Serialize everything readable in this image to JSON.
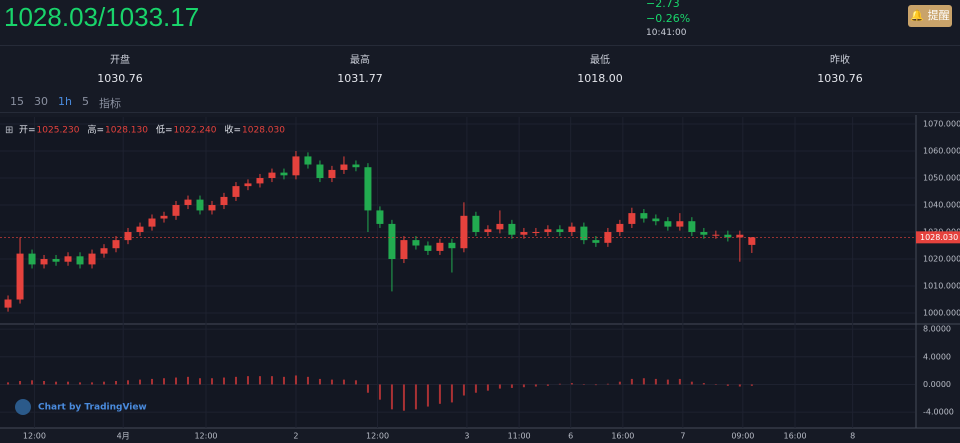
{
  "header": {
    "price": "1028.03/1033.17",
    "change": "−2.73",
    "change_pct": "−0.26%",
    "time": "10:41:00",
    "button": "提醒"
  },
  "stats": [
    {
      "label": "开盘",
      "value": "1030.76"
    },
    {
      "label": "最高",
      "value": "1031.77"
    },
    {
      "label": "最低",
      "value": "1018.00"
    },
    {
      "label": "昨收",
      "value": "1030.76"
    }
  ],
  "toolbar": {
    "intervals": [
      "15",
      "30",
      "1h",
      "5"
    ],
    "indicators": "指标"
  },
  "watermark": "Chart by TradingView",
  "chart_data": {
    "type": "candlestick",
    "legend": [
      {
        "name": "开=",
        "value": 1025.23,
        "label": "1025.230"
      },
      {
        "name": "高=",
        "value": 1028.13,
        "label": "1028.130"
      },
      {
        "name": "低=",
        "value": 1022.24,
        "label": "1022.240"
      },
      {
        "name": "收=",
        "value": 1028.03,
        "label": "1028.030"
      }
    ],
    "up_color": "#e5423d",
    "down_color": "#22ab50",
    "open": [
      1002,
      1005,
      1022,
      1018,
      1020,
      1019,
      1021,
      1018,
      1022,
      1024,
      1027,
      1030,
      1032,
      1035,
      1036,
      1040,
      1042,
      1038,
      1040,
      1043,
      1047,
      1048,
      1050,
      1052,
      1051,
      1058,
      1055,
      1050,
      1053,
      1055,
      1054,
      1038,
      1033,
      1020,
      1027,
      1025,
      1023,
      1026,
      1024,
      1036,
      1030,
      1031,
      1033,
      1029,
      1030,
      1030,
      1031,
      1030,
      1032,
      1027,
      1026,
      1030,
      1033,
      1037,
      1035,
      1034,
      1032,
      1034,
      1030,
      1029,
      1029,
      1028,
      1025.23
    ],
    "high": [
      1006.5,
      1028,
      1023.5,
      1021.5,
      1021.5,
      1022.5,
      1022.5,
      1023.5,
      1025.5,
      1028.5,
      1031.5,
      1033.5,
      1036.5,
      1037.5,
      1041.5,
      1043.5,
      1043.5,
      1041.5,
      1044.5,
      1048.5,
      1049.5,
      1051.5,
      1053.5,
      1053.5,
      1060,
      1059.5,
      1056.5,
      1054.5,
      1058,
      1056.5,
      1055.5,
      1039.5,
      1034.5,
      1028.5,
      1028.5,
      1026.5,
      1027.5,
      1027.5,
      1041,
      1037.5,
      1032.5,
      1038,
      1034.5,
      1031.5,
      1031.5,
      1032.5,
      1032.5,
      1033.5,
      1033.5,
      1028.5,
      1031.5,
      1034.5,
      1039,
      1038.5,
      1036.5,
      1035.5,
      1037,
      1035.5,
      1031.5,
      1030.5,
      1030.5,
      1030.5,
      1028.13
    ],
    "low": [
      1000.5,
      1003.5,
      1016.5,
      1016.5,
      1017.5,
      1017.5,
      1016.5,
      1016.5,
      1020.5,
      1022.5,
      1025.5,
      1028.5,
      1030.5,
      1033.5,
      1034.5,
      1038.5,
      1036.5,
      1036.5,
      1038.5,
      1041.5,
      1045.5,
      1046.5,
      1048.5,
      1049.5,
      1049.5,
      1053.5,
      1048.5,
      1048.5,
      1051.5,
      1052.5,
      1030,
      1031.5,
      1008,
      1018.5,
      1023.5,
      1021.5,
      1021.5,
      1015,
      1022.5,
      1028.5,
      1028.5,
      1029.5,
      1027.5,
      1027.5,
      1028.5,
      1028.5,
      1028.5,
      1028.5,
      1025.5,
      1024.5,
      1024.5,
      1028.5,
      1031.5,
      1033.5,
      1032.5,
      1030.5,
      1030.5,
      1028.5,
      1027.5,
      1027.5,
      1026.5,
      1019,
      1022.24
    ],
    "close": [
      1005,
      1022,
      1018,
      1020,
      1019,
      1021,
      1018,
      1022,
      1024,
      1027,
      1030,
      1032,
      1035,
      1036,
      1040,
      1042,
      1038,
      1040,
      1043,
      1047,
      1048,
      1050,
      1052,
      1051,
      1058,
      1055,
      1050,
      1053,
      1055,
      1054,
      1038,
      1033,
      1020,
      1027,
      1025,
      1023,
      1026,
      1024,
      1036,
      1030,
      1031,
      1033,
      1029,
      1030,
      1030,
      1031,
      1030,
      1032,
      1027,
      1026,
      1030,
      1033,
      1037,
      1035,
      1034,
      1032,
      1034,
      1030,
      1029,
      1029,
      1028,
      1029,
      1028.03
    ],
    "last_price": {
      "value": 1028.03,
      "label": "1028.030"
    },
    "xlim": [
      -0.67,
      75.6
    ],
    "xticks": [
      {
        "value": 2.2,
        "label": "12:00"
      },
      {
        "value": 9.6,
        "label": "4月"
      },
      {
        "value": 16.5,
        "label": "12:00"
      },
      {
        "value": 24,
        "label": "2"
      },
      {
        "value": 30.8,
        "label": "12:00"
      },
      {
        "value": 38.25,
        "label": "3"
      },
      {
        "value": 42.6,
        "label": "11:00"
      },
      {
        "value": 46.9,
        "label": "6"
      },
      {
        "value": 51.25,
        "label": "16:00"
      },
      {
        "value": 56.25,
        "label": "7"
      },
      {
        "value": 61.25,
        "label": "09:00"
      },
      {
        "value": 65.6,
        "label": "16:00"
      },
      {
        "value": 70.4,
        "label": "8"
      }
    ],
    "ylim": [
      996.3,
      1072.6
    ],
    "yticks": [
      {
        "value": 1000,
        "label": "1000.000"
      },
      {
        "value": 1010,
        "label": "1010.000"
      },
      {
        "value": 1020,
        "label": "1020.000"
      },
      {
        "value": 1030,
        "label": "1030.000"
      },
      {
        "value": 1040,
        "label": "1040.000"
      },
      {
        "value": 1050,
        "label": "1050.000"
      },
      {
        "value": 1060,
        "label": "1060.000"
      },
      {
        "value": 1070,
        "label": "1070.000"
      }
    ],
    "indicator": {
      "color": "#d0383a",
      "values": [
        0.3,
        0.5,
        0.6,
        0.5,
        0.4,
        0.4,
        0.3,
        0.3,
        0.4,
        0.5,
        0.6,
        0.7,
        0.8,
        0.9,
        1,
        1.1,
        0.9,
        0.9,
        1,
        1.1,
        1.2,
        1.2,
        1.2,
        1.1,
        1.3,
        1.1,
        0.8,
        0.7,
        0.7,
        0.6,
        -1.2,
        -2.2,
        -3.6,
        -3.8,
        -3.6,
        -3.2,
        -2.8,
        -2.6,
        -1.6,
        -1.2,
        -0.9,
        -0.6,
        -0.5,
        -0.4,
        -0.3,
        -0.2,
        0.1,
        0.2,
        0,
        -0.1,
        0.1,
        0.4,
        0.8,
        0.9,
        0.8,
        0.7,
        0.8,
        0.4,
        0.2,
        0,
        -0.2,
        -0.3,
        -0.2
      ],
      "ylim": [
        -6.3,
        8.6
      ],
      "yticks": [
        {
          "value": 8,
          "label": "8.0000"
        },
        {
          "value": 4,
          "label": "4.0000"
        },
        {
          "value": 0,
          "label": "0.0000"
        },
        {
          "value": -4,
          "label": "-4.0000"
        }
      ]
    }
  }
}
